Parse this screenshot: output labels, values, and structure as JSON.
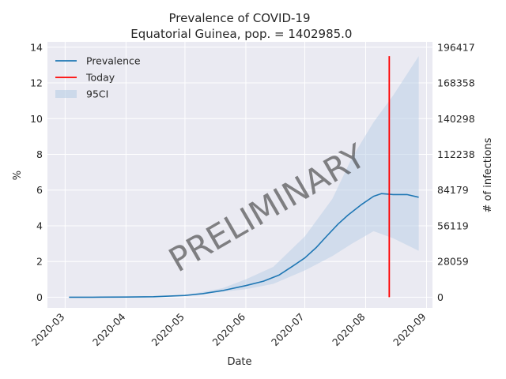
{
  "chart_data": {
    "type": "line",
    "title_line1": "Prevalence of COVID-19",
    "title_line2": " Equatorial Guinea, pop. = 1402985.0",
    "xlabel": "Date",
    "ylabel": "%",
    "ylabel_right": "# of infections",
    "x_ticks": [
      "2020-03",
      "2020-04",
      "2020-05",
      "2020-06",
      "2020-07",
      "2020-08",
      "2020-09"
    ],
    "x_range": [
      "2020-02-21",
      "2020-09-04"
    ],
    "y_ticks": [
      0,
      2,
      4,
      6,
      8,
      10,
      12,
      14
    ],
    "ylim": [
      -0.6,
      14.3
    ],
    "y_right_ticks": [
      "0",
      "28059",
      "56119",
      "84179",
      "112238",
      "140298",
      "168358",
      "196417"
    ],
    "legend": [
      {
        "label": "Prevalence",
        "color": "#1f77b4",
        "kind": "line"
      },
      {
        "label": "Today",
        "color": "#ff0000",
        "kind": "line"
      },
      {
        "label": "95CI",
        "color": "#b8cde5",
        "kind": "band"
      }
    ],
    "legend_position": "top-left",
    "grid": true,
    "watermark": "PRELIMINARY",
    "today": {
      "date": "2020-08-13",
      "y_top": 13.5
    },
    "series": [
      {
        "name": "Prevalence",
        "color": "#1f77b4",
        "points": [
          [
            "2020-03-03",
            0.0
          ],
          [
            "2020-03-15",
            0.0
          ],
          [
            "2020-04-01",
            0.01
          ],
          [
            "2020-04-15",
            0.03
          ],
          [
            "2020-05-01",
            0.1
          ],
          [
            "2020-05-10",
            0.2
          ],
          [
            "2020-05-20",
            0.37
          ],
          [
            "2020-06-01",
            0.65
          ],
          [
            "2020-06-10",
            0.9
          ],
          [
            "2020-06-18",
            1.25
          ],
          [
            "2020-06-25",
            1.75
          ],
          [
            "2020-07-01",
            2.2
          ],
          [
            "2020-07-07",
            2.8
          ],
          [
            "2020-07-12",
            3.4
          ],
          [
            "2020-07-18",
            4.1
          ],
          [
            "2020-07-23",
            4.6
          ],
          [
            "2020-07-30",
            5.2
          ],
          [
            "2020-08-05",
            5.65
          ],
          [
            "2020-08-09",
            5.8
          ],
          [
            "2020-08-15",
            5.75
          ],
          [
            "2020-08-22",
            5.75
          ],
          [
            "2020-08-28",
            5.6
          ]
        ]
      }
    ],
    "ci_upper": [
      [
        "2020-03-03",
        0.0
      ],
      [
        "2020-04-01",
        0.01
      ],
      [
        "2020-05-01",
        0.12
      ],
      [
        "2020-05-20",
        0.5
      ],
      [
        "2020-06-01",
        1.0
      ],
      [
        "2020-06-15",
        1.7
      ],
      [
        "2020-07-01",
        3.4
      ],
      [
        "2020-07-15",
        5.5
      ],
      [
        "2020-07-25",
        7.8
      ],
      [
        "2020-08-05",
        9.8
      ],
      [
        "2020-08-15",
        11.3
      ],
      [
        "2020-08-28",
        13.5
      ]
    ],
    "ci_lower": [
      [
        "2020-03-03",
        0.0
      ],
      [
        "2020-04-01",
        0.0
      ],
      [
        "2020-05-01",
        0.08
      ],
      [
        "2020-05-20",
        0.3
      ],
      [
        "2020-06-01",
        0.45
      ],
      [
        "2020-06-15",
        0.75
      ],
      [
        "2020-07-01",
        1.5
      ],
      [
        "2020-07-15",
        2.3
      ],
      [
        "2020-07-25",
        3.0
      ],
      [
        "2020-08-05",
        3.7
      ],
      [
        "2020-08-15",
        3.3
      ],
      [
        "2020-08-28",
        2.6
      ]
    ]
  }
}
